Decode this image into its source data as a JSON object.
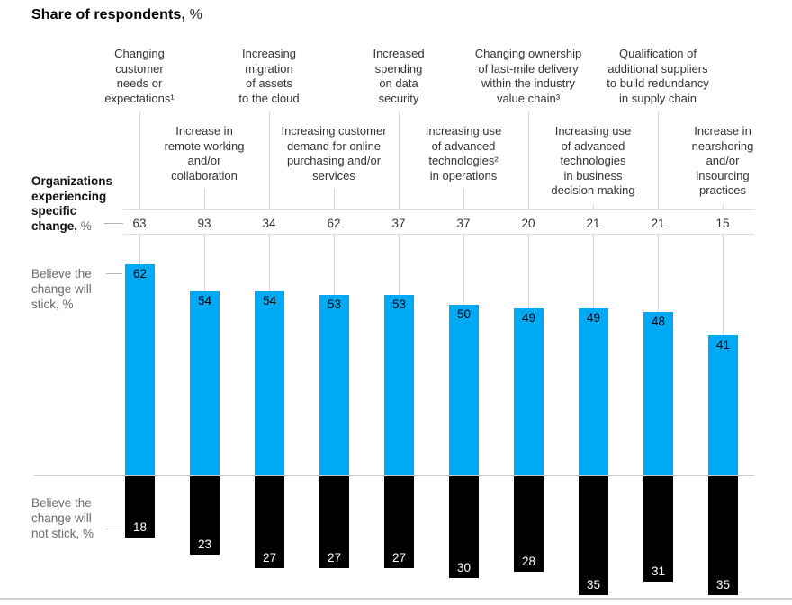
{
  "title": {
    "main": "Share of respondents,",
    "unit": " %"
  },
  "row_labels": {
    "organizations": {
      "bold": "Organizations\nexperiencing\nspecific\nchange,",
      "unit": " %"
    },
    "stick": "Believe the\nchange will\nstick, %",
    "not_stick": "Believe the\nchange will\nnot stick, %"
  },
  "chart_data": {
    "type": "bar",
    "subtype": "diverging-vertical-columns",
    "title": "Share of respondents, %",
    "categories": [
      "Changing\ncustomer\nneeds or\nexpectations¹",
      "Increase in\nremote working\nand/or\ncollaboration",
      "Increasing\nmigration\nof assets\nto the cloud",
      "Increasing customer\ndemand for online\npurchasing and/or\nservices",
      "Increased\nspending\non data\nsecurity",
      "Increasing use\nof advanced\ntechnologies²\nin operations",
      "Changing ownership\nof last-mile delivery\nwithin the industry\nvalue chain³",
      "Increasing use\nof advanced\ntechnologies\nin business\ndecision making",
      "Qualification of\nadditional suppliers\nto build redundancy\nin supply chain",
      "Increase in\nnearshoring\nand/or\ninsourcing\npractices"
    ],
    "series": [
      {
        "name": "Organizations experiencing specific change, %",
        "display": "number-row",
        "values": [
          63,
          93,
          34,
          62,
          37,
          37,
          20,
          21,
          21,
          15
        ]
      },
      {
        "name": "Believe the change will stick, %",
        "color": "#00a9f4",
        "direction": "up",
        "values": [
          62,
          54,
          54,
          53,
          53,
          50,
          49,
          49,
          48,
          41
        ]
      },
      {
        "name": "Believe the change will not stick, %",
        "color": "#000000",
        "direction": "down",
        "values": [
          18,
          23,
          27,
          27,
          27,
          30,
          28,
          35,
          31,
          35
        ]
      }
    ],
    "value_labels": "inside-bars",
    "grid": "off",
    "colors": {
      "stick_bar": "#00a9f4",
      "not_stick_bar": "#000000",
      "leader_line": "#d8d8d8",
      "band_rule": "#dcdcdc",
      "baseline": "#c6c9cc",
      "bottom_border": "#ccd2d6",
      "header_text": "#333333",
      "muted_label": "#6b6b6b"
    }
  }
}
